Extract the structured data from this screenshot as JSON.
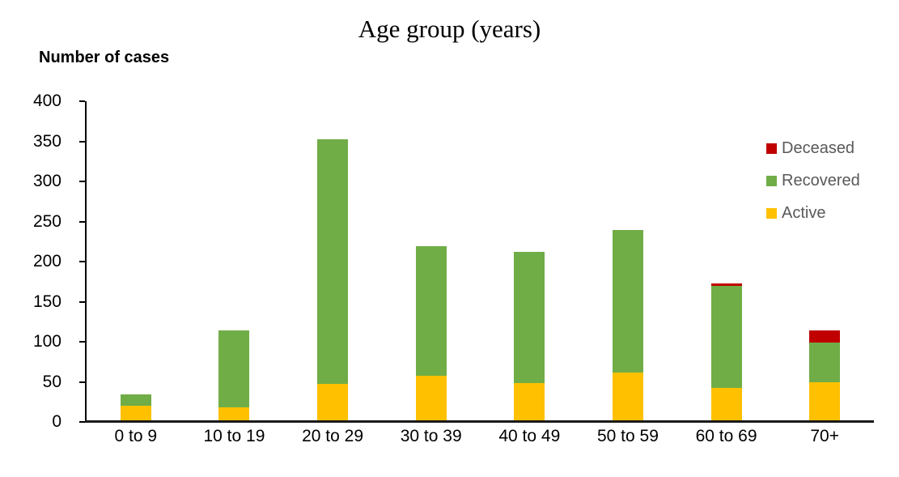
{
  "title": "Age group (years)",
  "y_axis_title": "Number of cases",
  "colors": {
    "background": "#FFFFFF",
    "axis": "#000000",
    "axis_text": "#000000",
    "legend_text": "#595959",
    "deceased": "#C00000",
    "recovered": "#70AD47",
    "active": "#FFC000"
  },
  "legend": {
    "position": "right",
    "items": [
      {
        "label": "Deceased",
        "color": "#C00000"
      },
      {
        "label": "Recovered",
        "color": "#70AD47"
      },
      {
        "label": "Active",
        "color": "#FFC000"
      }
    ]
  },
  "chart_data": {
    "type": "bar",
    "stacked": true,
    "title": "Age group (years)",
    "xlabel": "",
    "ylabel": "Number of cases",
    "categories": [
      "0 to 9",
      "10 to 19",
      "20 to 29",
      "30 to 39",
      "40 to 49",
      "50 to 59",
      "60 to 69",
      "70+"
    ],
    "series": [
      {
        "name": "Active",
        "color": "#FFC000",
        "values": [
          20,
          18,
          47,
          58,
          49,
          62,
          42,
          50
        ]
      },
      {
        "name": "Recovered",
        "color": "#70AD47",
        "values": [
          14,
          96,
          306,
          161,
          163,
          177,
          128,
          49
        ]
      },
      {
        "name": "Deceased",
        "color": "#C00000",
        "values": [
          0,
          0,
          0,
          0,
          0,
          0,
          3,
          15
        ]
      }
    ],
    "stack_order_bottom_to_top": [
      "Active",
      "Recovered",
      "Deceased"
    ],
    "totals": [
      34,
      114,
      353,
      219,
      212,
      239,
      173,
      114
    ],
    "ylim": [
      0,
      400
    ],
    "yticks": [
      0,
      50,
      100,
      150,
      200,
      250,
      300,
      350,
      400
    ],
    "grid": false,
    "legend_position": "right",
    "legend_order_top_to_bottom": [
      "Deceased",
      "Recovered",
      "Active"
    ]
  }
}
